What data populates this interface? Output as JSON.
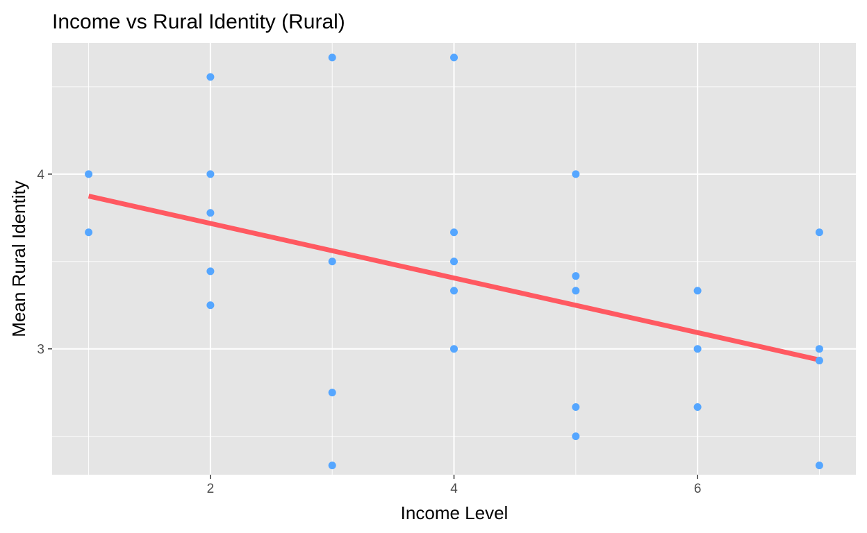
{
  "chart_data": {
    "type": "scatter",
    "title": "Income vs Rural Identity (Rural)",
    "xlabel": "Income Level",
    "ylabel": "Mean Rural Identity",
    "xlim": [
      0.7,
      7.3
    ],
    "ylim": [
      2.28,
      4.75
    ],
    "x_ticks": [
      2,
      4,
      6
    ],
    "y_ticks": [
      3,
      4
    ],
    "x_tick_labels": [
      "2",
      "4",
      "6"
    ],
    "y_tick_labels": [
      "3",
      "4"
    ],
    "grid": true,
    "legend": "none",
    "colors": {
      "panel": "#e5e5e5",
      "grid": "#ffffff",
      "point": "#55a6ff",
      "trend": "#ff5961",
      "tick": "#333333"
    },
    "points": [
      {
        "x": 1,
        "y": 4.0
      },
      {
        "x": 1,
        "y": 3.667
      },
      {
        "x": 2,
        "y": 4.556
      },
      {
        "x": 2,
        "y": 4.0
      },
      {
        "x": 2,
        "y": 3.778
      },
      {
        "x": 2,
        "y": 3.444
      },
      {
        "x": 2,
        "y": 3.25
      },
      {
        "x": 3,
        "y": 4.667
      },
      {
        "x": 3,
        "y": 3.5
      },
      {
        "x": 3,
        "y": 2.75
      },
      {
        "x": 3,
        "y": 2.333
      },
      {
        "x": 4,
        "y": 4.667
      },
      {
        "x": 4,
        "y": 3.667
      },
      {
        "x": 4,
        "y": 3.5
      },
      {
        "x": 4,
        "y": 3.333
      },
      {
        "x": 4,
        "y": 3.0
      },
      {
        "x": 5,
        "y": 4.0
      },
      {
        "x": 5,
        "y": 3.417
      },
      {
        "x": 5,
        "y": 3.333
      },
      {
        "x": 5,
        "y": 2.667
      },
      {
        "x": 5,
        "y": 2.5
      },
      {
        "x": 6,
        "y": 3.333
      },
      {
        "x": 6,
        "y": 3.0
      },
      {
        "x": 6,
        "y": 2.667
      },
      {
        "x": 7,
        "y": 3.667
      },
      {
        "x": 7,
        "y": 3.0
      },
      {
        "x": 7,
        "y": 2.933
      },
      {
        "x": 7,
        "y": 2.333
      }
    ],
    "trend_line": {
      "x": [
        1,
        7
      ],
      "y": [
        3.874,
        2.937
      ]
    }
  }
}
